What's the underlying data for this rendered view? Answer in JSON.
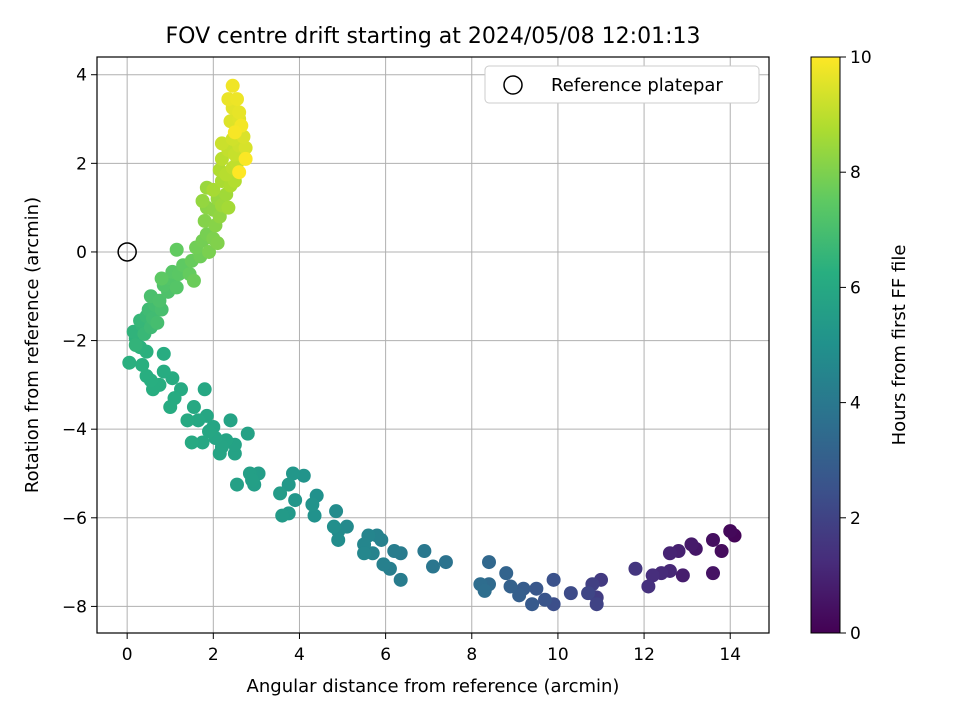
{
  "chart_data": {
    "type": "scatter",
    "title": "FOV centre drift starting at 2024/05/08 12:01:13",
    "xlabel": "Angular distance from reference (arcmin)",
    "ylabel": "Rotation from reference (arcmin)",
    "xlim": [
      -0.7,
      14.9
    ],
    "ylim": [
      -8.6,
      4.4
    ],
    "xticks": [
      0,
      2,
      4,
      6,
      8,
      10,
      12,
      14
    ],
    "yticks": [
      -8,
      -6,
      -4,
      -2,
      0,
      2,
      4
    ],
    "grid": true,
    "legend": {
      "position": "top-right",
      "entries": [
        "Reference platepar"
      ]
    },
    "reference_point": {
      "x": 0,
      "y": 0
    },
    "colorbar": {
      "label": "Hours from first FF file",
      "min": 0,
      "max": 10,
      "ticks": [
        0,
        2,
        4,
        6,
        8,
        10
      ],
      "colormap": "viridis"
    },
    "series": [
      {
        "points": [
          {
            "x": 14.1,
            "y": -6.4,
            "t": 0.1
          },
          {
            "x": 14.0,
            "y": -6.3,
            "t": 0.2
          },
          {
            "x": 13.8,
            "y": -6.75,
            "t": 0.3
          },
          {
            "x": 13.6,
            "y": -6.5,
            "t": 0.4
          },
          {
            "x": 13.6,
            "y": -7.25,
            "t": 0.5
          },
          {
            "x": 13.2,
            "y": -6.7,
            "t": 0.6
          },
          {
            "x": 13.1,
            "y": -6.6,
            "t": 0.7
          },
          {
            "x": 12.9,
            "y": -7.3,
            "t": 0.8
          },
          {
            "x": 12.8,
            "y": -6.75,
            "t": 0.9
          },
          {
            "x": 12.6,
            "y": -6.8,
            "t": 1.0
          },
          {
            "x": 12.6,
            "y": -7.2,
            "t": 1.1
          },
          {
            "x": 12.4,
            "y": -7.25,
            "t": 1.2
          },
          {
            "x": 12.2,
            "y": -7.3,
            "t": 1.3
          },
          {
            "x": 12.1,
            "y": -7.55,
            "t": 1.4
          },
          {
            "x": 11.8,
            "y": -7.15,
            "t": 1.55
          },
          {
            "x": 11.0,
            "y": -7.4,
            "t": 1.7
          },
          {
            "x": 10.9,
            "y": -7.8,
            "t": 1.8
          },
          {
            "x": 10.8,
            "y": -7.5,
            "t": 1.9
          },
          {
            "x": 10.9,
            "y": -7.95,
            "t": 2.0
          },
          {
            "x": 10.7,
            "y": -7.7,
            "t": 2.1
          },
          {
            "x": 10.3,
            "y": -7.7,
            "t": 2.25
          },
          {
            "x": 9.9,
            "y": -7.95,
            "t": 2.4
          },
          {
            "x": 9.9,
            "y": -7.4,
            "t": 2.5
          },
          {
            "x": 9.7,
            "y": -7.85,
            "t": 2.6
          },
          {
            "x": 9.5,
            "y": -7.6,
            "t": 2.7
          },
          {
            "x": 9.4,
            "y": -7.95,
            "t": 2.8
          },
          {
            "x": 9.2,
            "y": -7.6,
            "t": 2.9
          },
          {
            "x": 9.1,
            "y": -7.75,
            "t": 3.0
          },
          {
            "x": 8.9,
            "y": -7.55,
            "t": 3.1
          },
          {
            "x": 8.8,
            "y": -7.25,
            "t": 3.2
          },
          {
            "x": 8.4,
            "y": -7.0,
            "t": 3.35
          },
          {
            "x": 8.4,
            "y": -7.5,
            "t": 3.45
          },
          {
            "x": 8.2,
            "y": -7.5,
            "t": 3.55
          },
          {
            "x": 8.3,
            "y": -7.65,
            "t": 3.6
          },
          {
            "x": 7.4,
            "y": -7.0,
            "t": 3.8
          },
          {
            "x": 7.1,
            "y": -7.1,
            "t": 3.9
          },
          {
            "x": 6.9,
            "y": -6.75,
            "t": 4.0
          },
          {
            "x": 6.35,
            "y": -6.8,
            "t": 4.1
          },
          {
            "x": 6.35,
            "y": -7.4,
            "t": 4.15
          },
          {
            "x": 6.2,
            "y": -6.75,
            "t": 4.2
          },
          {
            "x": 6.1,
            "y": -7.15,
            "t": 4.25
          },
          {
            "x": 5.95,
            "y": -7.05,
            "t": 4.3
          },
          {
            "x": 5.9,
            "y": -6.5,
            "t": 4.35
          },
          {
            "x": 5.8,
            "y": -6.4,
            "t": 4.4
          },
          {
            "x": 5.7,
            "y": -6.8,
            "t": 4.45
          },
          {
            "x": 5.6,
            "y": -6.4,
            "t": 4.5
          },
          {
            "x": 5.5,
            "y": -6.6,
            "t": 4.55
          },
          {
            "x": 5.5,
            "y": -6.8,
            "t": 4.6
          },
          {
            "x": 5.1,
            "y": -6.2,
            "t": 4.7
          },
          {
            "x": 4.9,
            "y": -6.3,
            "t": 4.75
          },
          {
            "x": 4.85,
            "y": -5.85,
            "t": 4.8
          },
          {
            "x": 4.9,
            "y": -6.5,
            "t": 4.85
          },
          {
            "x": 4.8,
            "y": -6.2,
            "t": 4.9
          },
          {
            "x": 4.4,
            "y": -5.5,
            "t": 5.0
          },
          {
            "x": 4.35,
            "y": -5.95,
            "t": 5.05
          },
          {
            "x": 4.3,
            "y": -5.7,
            "t": 5.1
          },
          {
            "x": 4.1,
            "y": -5.05,
            "t": 5.15
          },
          {
            "x": 3.9,
            "y": -5.6,
            "t": 5.2
          },
          {
            "x": 3.85,
            "y": -5.0,
            "t": 5.25
          },
          {
            "x": 3.75,
            "y": -5.25,
            "t": 5.3
          },
          {
            "x": 3.75,
            "y": -5.9,
            "t": 5.35
          },
          {
            "x": 3.6,
            "y": -5.95,
            "t": 5.4
          },
          {
            "x": 3.55,
            "y": -5.45,
            "t": 5.45
          },
          {
            "x": 3.05,
            "y": -5.0,
            "t": 5.5
          },
          {
            "x": 2.95,
            "y": -5.25,
            "t": 5.55
          },
          {
            "x": 2.85,
            "y": -5.0,
            "t": 5.6
          },
          {
            "x": 2.9,
            "y": -5.15,
            "t": 5.62
          },
          {
            "x": 2.55,
            "y": -5.25,
            "t": 5.65
          },
          {
            "x": 2.8,
            "y": -4.1,
            "t": 5.7
          },
          {
            "x": 2.5,
            "y": -4.55,
            "t": 5.72
          },
          {
            "x": 2.5,
            "y": -4.35,
            "t": 5.75
          },
          {
            "x": 2.4,
            "y": -3.8,
            "t": 5.78
          },
          {
            "x": 2.3,
            "y": -4.25,
            "t": 5.8
          },
          {
            "x": 2.2,
            "y": -4.4,
            "t": 5.82
          },
          {
            "x": 2.15,
            "y": -4.55,
            "t": 5.84
          },
          {
            "x": 2.05,
            "y": -4.2,
            "t": 5.86
          },
          {
            "x": 2.0,
            "y": -3.95,
            "t": 5.88
          },
          {
            "x": 1.9,
            "y": -4.05,
            "t": 5.9
          },
          {
            "x": 1.85,
            "y": -3.7,
            "t": 5.92
          },
          {
            "x": 1.8,
            "y": -3.1,
            "t": 5.94
          },
          {
            "x": 1.75,
            "y": -4.3,
            "t": 5.96
          },
          {
            "x": 1.65,
            "y": -3.8,
            "t": 5.98
          },
          {
            "x": 1.55,
            "y": -3.5,
            "t": 6.0
          },
          {
            "x": 1.5,
            "y": -4.3,
            "t": 6.02
          },
          {
            "x": 1.4,
            "y": -3.8,
            "t": 6.05
          },
          {
            "x": 1.25,
            "y": -3.1,
            "t": 6.08
          },
          {
            "x": 1.1,
            "y": -3.3,
            "t": 6.1
          },
          {
            "x": 1.05,
            "y": -2.85,
            "t": 6.12
          },
          {
            "x": 1.0,
            "y": -3.5,
            "t": 6.14
          },
          {
            "x": 0.85,
            "y": -2.7,
            "t": 6.16
          },
          {
            "x": 0.85,
            "y": -2.3,
            "t": 6.18
          },
          {
            "x": 0.75,
            "y": -3.0,
            "t": 6.2
          },
          {
            "x": 0.6,
            "y": -3.1,
            "t": 6.22
          },
          {
            "x": 0.55,
            "y": -2.9,
            "t": 6.24
          },
          {
            "x": 0.45,
            "y": -2.8,
            "t": 6.26
          },
          {
            "x": 0.35,
            "y": -2.55,
            "t": 6.28
          },
          {
            "x": 0.05,
            "y": -2.5,
            "t": 6.3
          },
          {
            "x": 0.45,
            "y": -2.25,
            "t": 6.33
          },
          {
            "x": 0.3,
            "y": -2.15,
            "t": 6.36
          },
          {
            "x": 0.2,
            "y": -1.95,
            "t": 6.4
          },
          {
            "x": 0.15,
            "y": -1.8,
            "t": 6.45
          },
          {
            "x": 0.2,
            "y": -2.1,
            "t": 6.5
          },
          {
            "x": 0.35,
            "y": -1.65,
            "t": 6.55
          },
          {
            "x": 0.3,
            "y": -1.55,
            "t": 6.6
          },
          {
            "x": 0.4,
            "y": -1.85,
            "t": 6.65
          },
          {
            "x": 0.45,
            "y": -1.45,
            "t": 6.7
          },
          {
            "x": 0.55,
            "y": -1.7,
            "t": 6.75
          },
          {
            "x": 0.5,
            "y": -1.3,
            "t": 6.8
          },
          {
            "x": 0.6,
            "y": -1.5,
            "t": 6.85
          },
          {
            "x": 0.65,
            "y": -1.2,
            "t": 6.9
          },
          {
            "x": 0.7,
            "y": -1.6,
            "t": 6.95
          },
          {
            "x": 0.8,
            "y": -1.3,
            "t": 7.0
          },
          {
            "x": 0.55,
            "y": -1.0,
            "t": 7.05
          },
          {
            "x": 0.75,
            "y": -1.1,
            "t": 7.1
          },
          {
            "x": 0.95,
            "y": -0.9,
            "t": 7.15
          },
          {
            "x": 0.85,
            "y": -0.75,
            "t": 7.2
          },
          {
            "x": 1.0,
            "y": -0.6,
            "t": 7.25
          },
          {
            "x": 1.15,
            "y": -0.8,
            "t": 7.3
          },
          {
            "x": 1.05,
            "y": -0.45,
            "t": 7.35
          },
          {
            "x": 1.2,
            "y": -0.5,
            "t": 7.4
          },
          {
            "x": 0.8,
            "y": -0.6,
            "t": 7.45
          },
          {
            "x": 1.3,
            "y": -0.3,
            "t": 7.5
          },
          {
            "x": 1.15,
            "y": 0.05,
            "t": 7.55
          },
          {
            "x": 1.45,
            "y": -0.5,
            "t": 7.6
          },
          {
            "x": 1.5,
            "y": -0.2,
            "t": 7.65
          },
          {
            "x": 1.55,
            "y": -0.65,
            "t": 7.7
          },
          {
            "x": 1.7,
            "y": -0.1,
            "t": 7.75
          },
          {
            "x": 1.6,
            "y": 0.1,
            "t": 7.8
          },
          {
            "x": 1.75,
            "y": 0.25,
            "t": 7.85
          },
          {
            "x": 1.85,
            "y": 0.4,
            "t": 7.9
          },
          {
            "x": 1.9,
            "y": 0.0,
            "t": 7.95
          },
          {
            "x": 2.0,
            "y": 0.3,
            "t": 8.0
          },
          {
            "x": 2.1,
            "y": 0.2,
            "t": 8.05
          },
          {
            "x": 1.8,
            "y": 0.7,
            "t": 8.1
          },
          {
            "x": 2.05,
            "y": 0.6,
            "t": 8.15
          },
          {
            "x": 1.85,
            "y": 1.0,
            "t": 8.2
          },
          {
            "x": 2.0,
            "y": 0.95,
            "t": 8.25
          },
          {
            "x": 2.15,
            "y": 0.8,
            "t": 8.3
          },
          {
            "x": 1.75,
            "y": 1.15,
            "t": 8.35
          },
          {
            "x": 2.1,
            "y": 1.2,
            "t": 8.4
          },
          {
            "x": 1.85,
            "y": 1.45,
            "t": 8.45
          },
          {
            "x": 2.2,
            "y": 1.05,
            "t": 8.5
          },
          {
            "x": 2.3,
            "y": 1.3,
            "t": 8.55
          },
          {
            "x": 2.35,
            "y": 1.0,
            "t": 8.6
          },
          {
            "x": 2.0,
            "y": 1.4,
            "t": 8.65
          },
          {
            "x": 2.2,
            "y": 1.6,
            "t": 8.7
          },
          {
            "x": 2.4,
            "y": 1.5,
            "t": 8.75
          },
          {
            "x": 2.15,
            "y": 1.85,
            "t": 8.8
          },
          {
            "x": 2.5,
            "y": 1.6,
            "t": 8.85
          },
          {
            "x": 2.3,
            "y": 1.75,
            "t": 8.9
          },
          {
            "x": 2.2,
            "y": 2.1,
            "t": 8.95
          },
          {
            "x": 2.45,
            "y": 1.9,
            "t": 9.0
          },
          {
            "x": 2.55,
            "y": 2.0,
            "t": 9.05
          },
          {
            "x": 2.35,
            "y": 2.3,
            "t": 9.1
          },
          {
            "x": 2.5,
            "y": 2.2,
            "t": 9.15
          },
          {
            "x": 2.2,
            "y": 2.45,
            "t": 9.2
          },
          {
            "x": 2.6,
            "y": 2.4,
            "t": 9.25
          },
          {
            "x": 2.45,
            "y": 2.55,
            "t": 9.3
          },
          {
            "x": 2.55,
            "y": 2.75,
            "t": 9.35
          },
          {
            "x": 2.75,
            "y": 2.35,
            "t": 9.4
          },
          {
            "x": 2.7,
            "y": 2.6,
            "t": 9.45
          },
          {
            "x": 2.4,
            "y": 2.95,
            "t": 9.5
          },
          {
            "x": 2.6,
            "y": 3.0,
            "t": 9.55
          },
          {
            "x": 2.45,
            "y": 3.25,
            "t": 9.6
          },
          {
            "x": 2.6,
            "y": 3.15,
            "t": 9.65
          },
          {
            "x": 2.35,
            "y": 3.45,
            "t": 9.7
          },
          {
            "x": 2.55,
            "y": 3.45,
            "t": 9.75
          },
          {
            "x": 2.45,
            "y": 3.75,
            "t": 9.8
          },
          {
            "x": 2.65,
            "y": 2.85,
            "t": 9.85
          },
          {
            "x": 2.5,
            "y": 2.7,
            "t": 9.9
          },
          {
            "x": 2.75,
            "y": 2.1,
            "t": 9.95
          },
          {
            "x": 2.6,
            "y": 1.8,
            "t": 10.0
          }
        ]
      }
    ]
  }
}
